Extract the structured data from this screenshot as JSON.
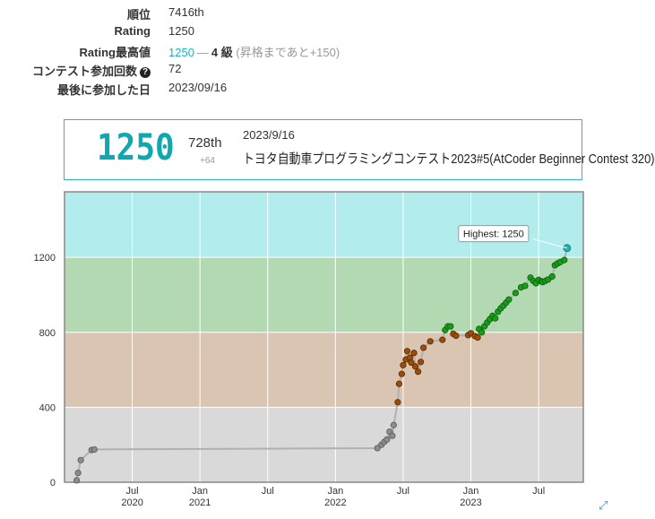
{
  "stats": {
    "rows": [
      {
        "key": "順位",
        "value": "7416th"
      },
      {
        "key": "Rating",
        "value": "1250"
      },
      {
        "key": "Rating最高値",
        "value": "1250",
        "dash": "―",
        "rank": "4 級",
        "note": "(昇格まであと+150)"
      },
      {
        "key": "コンテスト参加回数",
        "value": "72"
      },
      {
        "key": "最後に参加した日",
        "value": "2023/09/16"
      }
    ]
  },
  "latest": {
    "rating": "1250",
    "place": "728th",
    "diff": "+64",
    "date": "2023/9/16",
    "contest": "トヨタ自動車プログラミングコンテスト2023#5(AtCoder Beginner Contest 320)"
  },
  "chart_data": {
    "type": "line",
    "y_ticks": [
      0,
      400,
      800,
      1200
    ],
    "x_ticks": [
      {
        "label": "Jul",
        "year": "2020",
        "t": 2020.5
      },
      {
        "label": "Jan",
        "year": "2021",
        "t": 2021.0
      },
      {
        "label": "Jul",
        "year": "",
        "t": 2021.5
      },
      {
        "label": "Jan",
        "year": "2022",
        "t": 2022.0
      },
      {
        "label": "Jul",
        "year": "",
        "t": 2022.5
      },
      {
        "label": "Jan",
        "year": "2023",
        "t": 2023.0
      },
      {
        "label": "Jul",
        "year": "",
        "t": 2023.5
      }
    ],
    "xlim": [
      2020.0,
      2023.83
    ],
    "ylim": [
      0,
      1550
    ],
    "bands": [
      {
        "min": 0,
        "max": 400,
        "color": "#d9d9d9"
      },
      {
        "min": 400,
        "max": 800,
        "color": "#d9c5b2"
      },
      {
        "min": 800,
        "max": 1200,
        "color": "#b2d9b2"
      },
      {
        "min": 1200,
        "max": 1550,
        "color": "#b2ecec"
      }
    ],
    "tooltip": "Highest: 1250",
    "points": [
      [
        2020.09,
        10
      ],
      [
        2020.1,
        50
      ],
      [
        2020.12,
        118
      ],
      [
        2020.2,
        172
      ],
      [
        2020.22,
        175
      ],
      [
        2022.31,
        182
      ],
      [
        2022.34,
        200
      ],
      [
        2022.36,
        215
      ],
      [
        2022.38,
        228
      ],
      [
        2022.4,
        270
      ],
      [
        2022.42,
        248
      ],
      [
        2022.43,
        305
      ],
      [
        2022.46,
        427
      ],
      [
        2022.47,
        525
      ],
      [
        2022.49,
        578
      ],
      [
        2022.5,
        625
      ],
      [
        2022.52,
        655
      ],
      [
        2022.53,
        700
      ],
      [
        2022.55,
        665
      ],
      [
        2022.56,
        638
      ],
      [
        2022.58,
        690
      ],
      [
        2022.59,
        618
      ],
      [
        2022.61,
        590
      ],
      [
        2022.63,
        642
      ],
      [
        2022.65,
        718
      ],
      [
        2022.7,
        752
      ],
      [
        2022.79,
        760
      ],
      [
        2022.81,
        812
      ],
      [
        2022.83,
        832
      ],
      [
        2022.85,
        832
      ],
      [
        2022.87,
        792
      ],
      [
        2022.89,
        782
      ],
      [
        2022.98,
        785
      ],
      [
        2023.0,
        795
      ],
      [
        2023.03,
        780
      ],
      [
        2023.05,
        772
      ],
      [
        2023.06,
        818
      ],
      [
        2023.08,
        800
      ],
      [
        2023.1,
        832
      ],
      [
        2023.12,
        852
      ],
      [
        2023.14,
        870
      ],
      [
        2023.16,
        888
      ],
      [
        2023.18,
        875
      ],
      [
        2023.2,
        910
      ],
      [
        2023.22,
        928
      ],
      [
        2023.24,
        942
      ],
      [
        2023.26,
        958
      ],
      [
        2023.28,
        975
      ],
      [
        2023.33,
        1010
      ],
      [
        2023.37,
        1040
      ],
      [
        2023.4,
        1048
      ],
      [
        2023.44,
        1092
      ],
      [
        2023.46,
        1075
      ],
      [
        2023.48,
        1062
      ],
      [
        2023.5,
        1080
      ],
      [
        2023.52,
        1072
      ],
      [
        2023.53,
        1068
      ],
      [
        2023.55,
        1075
      ],
      [
        2023.57,
        1082
      ],
      [
        2023.6,
        1098
      ],
      [
        2023.62,
        1158
      ],
      [
        2023.64,
        1168
      ],
      [
        2023.66,
        1175
      ],
      [
        2023.69,
        1186
      ],
      [
        2023.71,
        1250
      ]
    ]
  }
}
